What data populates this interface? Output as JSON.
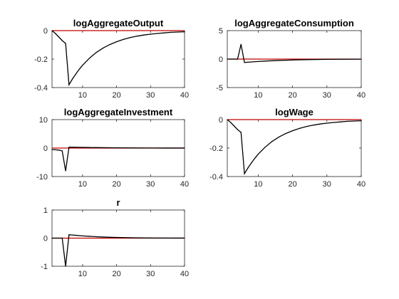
{
  "figure": {
    "background": "#ffffff",
    "zero_line_color": "#c00000",
    "series_color": "#000000"
  },
  "chart_data": [
    {
      "type": "line",
      "title": "logAggregateOutput",
      "xlim": [
        1,
        40
      ],
      "ylim": [
        -0.4,
        0
      ],
      "xticks": [
        10,
        20,
        30,
        40
      ],
      "yticks": [
        0,
        -0.2,
        -0.4
      ],
      "ytick_labels": [
        "0",
        "-0.2",
        "-0.4"
      ],
      "zero_line": 0,
      "x": [
        1,
        2,
        3,
        4,
        5,
        6,
        7,
        8,
        9,
        10,
        12,
        14,
        16,
        18,
        20,
        22,
        24,
        26,
        28,
        30,
        32,
        34,
        36,
        38,
        40
      ],
      "y": [
        0,
        -0.02,
        -0.045,
        -0.07,
        -0.09,
        -0.38,
        -0.34,
        -0.305,
        -0.272,
        -0.243,
        -0.194,
        -0.154,
        -0.123,
        -0.098,
        -0.078,
        -0.062,
        -0.049,
        -0.039,
        -0.031,
        -0.025,
        -0.02,
        -0.016,
        -0.012,
        -0.01,
        -0.008
      ]
    },
    {
      "type": "line",
      "title": "logAggregateConsumption",
      "xlim": [
        1,
        40
      ],
      "ylim": [
        -5,
        5
      ],
      "xticks": [
        10,
        20,
        30,
        40
      ],
      "yticks": [
        5,
        0,
        -5
      ],
      "ytick_labels": [
        "5",
        "0",
        "-5"
      ],
      "zero_line": 0,
      "x": [
        1,
        2,
        3,
        4,
        5,
        6,
        7,
        8,
        10,
        12,
        14,
        16,
        18,
        20,
        25,
        30,
        35,
        40
      ],
      "y": [
        0,
        0,
        0,
        0,
        2.6,
        -0.6,
        -0.55,
        -0.5,
        -0.42,
        -0.35,
        -0.29,
        -0.24,
        -0.2,
        -0.16,
        -0.09,
        -0.05,
        -0.03,
        -0.02
      ]
    },
    {
      "type": "line",
      "title": "logAggregateInvestment",
      "xlim": [
        1,
        40
      ],
      "ylim": [
        -10,
        10
      ],
      "xticks": [
        10,
        20,
        30,
        40
      ],
      "yticks": [
        10,
        0,
        -10
      ],
      "ytick_labels": [
        "10",
        "0",
        "-10"
      ],
      "zero_line": 0,
      "x": [
        1,
        2,
        3,
        4,
        5,
        6,
        7,
        8,
        10,
        12,
        14,
        16,
        18,
        20,
        25,
        30,
        35,
        40
      ],
      "y": [
        -0.5,
        -0.6,
        -0.7,
        -1,
        -8,
        0.3,
        0.3,
        0.28,
        0.24,
        0.2,
        0.17,
        0.14,
        0.12,
        0.1,
        0.06,
        0.04,
        0.02,
        0.01
      ]
    },
    {
      "type": "line",
      "title": "logWage",
      "xlim": [
        1,
        40
      ],
      "ylim": [
        -0.4,
        0
      ],
      "xticks": [
        10,
        20,
        30,
        40
      ],
      "yticks": [
        0,
        -0.2,
        -0.4
      ],
      "ytick_labels": [
        "0",
        "-0.2",
        "-0.4"
      ],
      "zero_line": 0,
      "x": [
        1,
        2,
        3,
        4,
        5,
        6,
        7,
        8,
        9,
        10,
        12,
        14,
        16,
        18,
        20,
        22,
        24,
        26,
        28,
        30,
        32,
        34,
        36,
        38,
        40
      ],
      "y": [
        0,
        -0.02,
        -0.045,
        -0.07,
        -0.09,
        -0.38,
        -0.34,
        -0.305,
        -0.272,
        -0.243,
        -0.194,
        -0.154,
        -0.123,
        -0.098,
        -0.078,
        -0.062,
        -0.049,
        -0.039,
        -0.031,
        -0.025,
        -0.02,
        -0.016,
        -0.012,
        -0.01,
        -0.008
      ]
    },
    {
      "type": "line",
      "title": "r",
      "xlim": [
        1,
        40
      ],
      "ylim": [
        -1,
        1
      ],
      "xticks": [
        10,
        20,
        30,
        40
      ],
      "yticks": [
        1,
        0,
        -1
      ],
      "ytick_labels": [
        "1",
        "0",
        "-1"
      ],
      "zero_line": 0,
      "x": [
        1,
        2,
        3,
        4,
        5,
        6,
        7,
        8,
        10,
        12,
        14,
        16,
        18,
        20,
        25,
        30,
        35,
        40
      ],
      "y": [
        0,
        0,
        0,
        0,
        -1,
        0.12,
        0.11,
        0.1,
        0.08,
        0.065,
        0.05,
        0.04,
        0.03,
        0.025,
        0.012,
        0.006,
        0.003,
        0.001
      ]
    }
  ]
}
